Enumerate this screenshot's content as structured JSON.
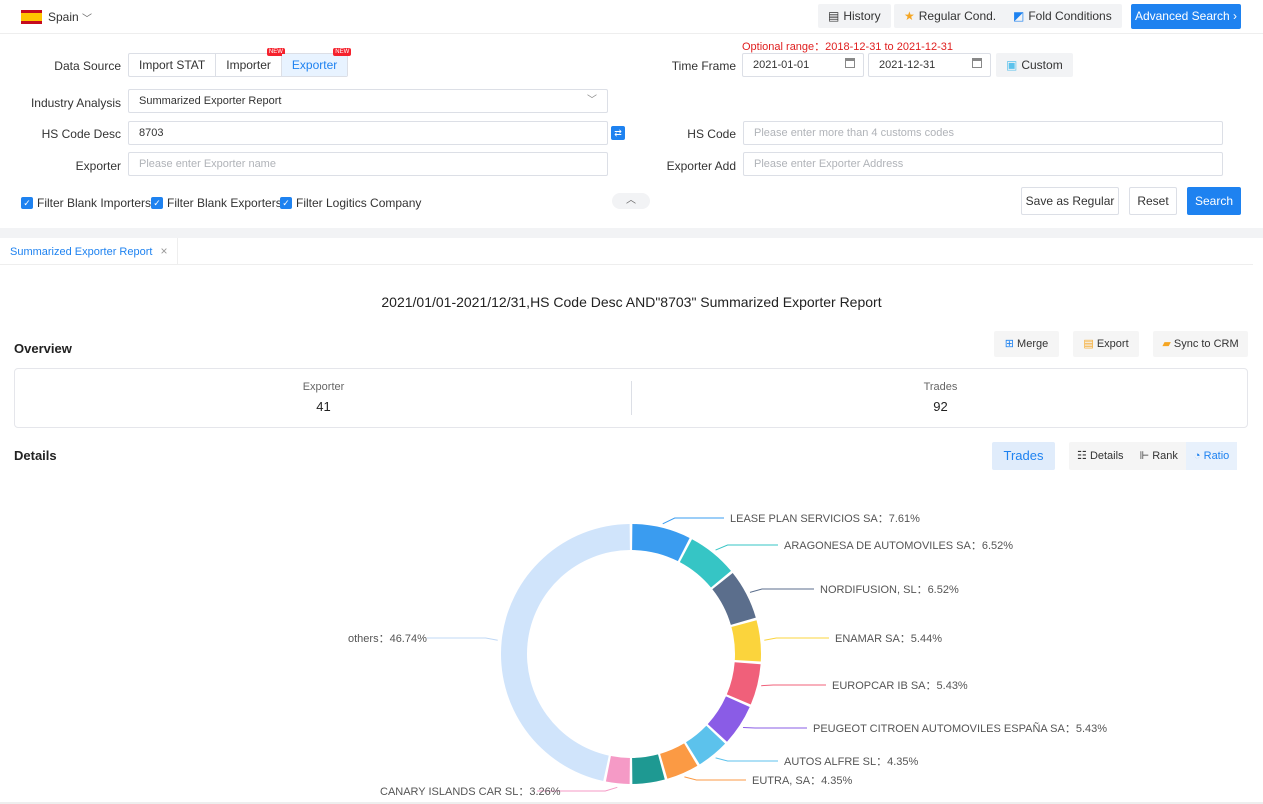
{
  "topbar": {
    "country": "Spain",
    "history": "History",
    "regular_cond": "Regular Cond.",
    "fold_conditions": "Fold Conditions",
    "advanced_search": "Advanced Search"
  },
  "form": {
    "data_source_label": "Data Source",
    "sources": [
      "Import STAT",
      "Importer",
      "Exporter"
    ],
    "new_badge": "NEW",
    "optional_range": "Optional range：2018-12-31 to 2021-12-31",
    "time_frame_label": "Time Frame",
    "date_from": "2021-01-01",
    "date_to": "2021-12-31",
    "custom": "Custom",
    "industry_label": "Industry Analysis",
    "industry_value": "Summarized Exporter Report",
    "hs_desc_label": "HS Code Desc",
    "hs_desc_value": "8703",
    "hs_code_label": "HS Code",
    "hs_code_placeholder": "Please enter more than 4 customs codes",
    "exporter_label": "Exporter",
    "exporter_placeholder": "Please enter Exporter name",
    "exporter_add_label": "Exporter Add",
    "exporter_add_placeholder": "Please enter Exporter Address",
    "filter_blank_importers": "Filter Blank Importers",
    "filter_blank_exporters": "Filter Blank Exporters",
    "filter_logistics": "Filter Logitics Company",
    "save_regular": "Save as Regular",
    "reset": "Reset",
    "search": "Search"
  },
  "report": {
    "tab": "Summarized Exporter Report",
    "title": "2021/01/01-2021/12/31,HS Code Desc AND\"8703\" Summarized Exporter Report",
    "overview_title": "Overview",
    "merge": "Merge",
    "export": "Export",
    "sync_crm": "Sync to CRM",
    "exporter_label": "Exporter",
    "exporter_count": "41",
    "trades_label": "Trades",
    "trades_count": "92",
    "details_title": "Details",
    "trades_btn": "Trades",
    "view_details": "Details",
    "view_rank": "Rank",
    "view_ratio": "Ratio"
  },
  "chart_data": {
    "type": "pie",
    "slices": [
      {
        "label": "LEASE PLAN SERVICIOS SA：7.61%",
        "value": 7.61,
        "color": "#3a9cf0"
      },
      {
        "label": "ARAGONESA DE AUTOMOVILES SA：6.52%",
        "value": 6.52,
        "color": "#36c5c5"
      },
      {
        "label": "NORDIFUSION, SL：6.52%",
        "value": 6.52,
        "color": "#5b6e8c"
      },
      {
        "label": "ENAMAR SA：5.44%",
        "value": 5.44,
        "color": "#fbd43c"
      },
      {
        "label": "EUROPCAR IB SA：5.43%",
        "value": 5.43,
        "color": "#f0607a"
      },
      {
        "label": "PEUGEOT CITROEN AUTOMOVILES ESPAÑA SA：5.43%",
        "value": 5.43,
        "color": "#8a5ce6"
      },
      {
        "label": "AUTOS ALFRE SL：4.35%",
        "value": 4.35,
        "color": "#5cc2ec"
      },
      {
        "label": "EUTRA, SA：4.35%",
        "value": 4.35,
        "color": "#fb9a44"
      },
      {
        "label": "",
        "value": 4.35,
        "color": "#1e9992"
      },
      {
        "label": "CANARY ISLANDS CAR SL：3.26%",
        "value": 3.26,
        "color": "#f59ac6"
      },
      {
        "label": "others：46.74%",
        "value": 46.74,
        "color": "#d0e4fb"
      }
    ]
  }
}
